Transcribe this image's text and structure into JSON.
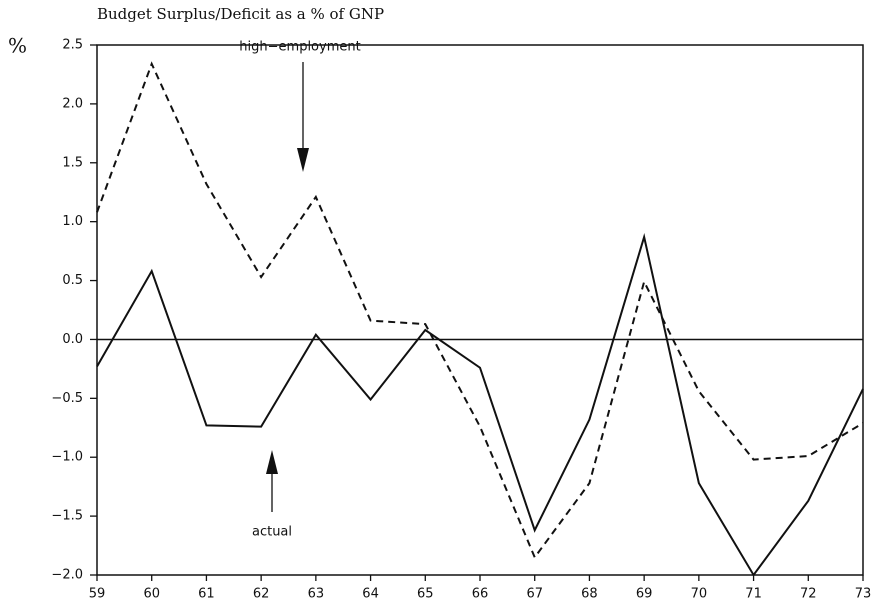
{
  "chart_data": {
    "type": "line",
    "title": "Budget Surplus/Deficit as a % of GNP",
    "y_label": "%",
    "categories": [
      "59",
      "60",
      "61",
      "62",
      "63",
      "64",
      "65",
      "66",
      "67",
      "68",
      "69",
      "70",
      "71",
      "72",
      "73"
    ],
    "series": [
      {
        "name": "actual",
        "color": "#111111",
        "dash": false,
        "values": [
          -0.23,
          0.58,
          -0.73,
          -0.74,
          0.04,
          -0.51,
          0.08,
          -0.24,
          -1.62,
          -0.68,
          0.87,
          -1.22,
          -2.0,
          -1.37,
          -0.42
        ]
      },
      {
        "name": "high−employment",
        "color": "#111111",
        "dash": true,
        "values": [
          1.08,
          2.34,
          1.32,
          0.53,
          1.21,
          0.16,
          0.13,
          -0.74,
          -1.85,
          -1.22,
          0.49,
          -0.44,
          -1.02,
          -0.99,
          -0.71
        ]
      }
    ],
    "ylim": [
      -2.0,
      2.5
    ],
    "yticks": [
      {
        "value": -2.0,
        "label": "−2.0"
      },
      {
        "value": -1.5,
        "label": "−1.5"
      },
      {
        "value": -1.0,
        "label": "−1.0"
      },
      {
        "value": -0.5,
        "label": "−0.5"
      },
      {
        "value": 0,
        "label": "0.0"
      },
      {
        "value": 0.5,
        "label": "0.5"
      },
      {
        "value": 1.0,
        "label": "1.0"
      },
      {
        "value": 1.5,
        "label": "1.5"
      },
      {
        "value": 2.0,
        "label": "2.0"
      },
      {
        "value": 2.5,
        "label": "2.5"
      }
    ],
    "zero_line": true
  }
}
